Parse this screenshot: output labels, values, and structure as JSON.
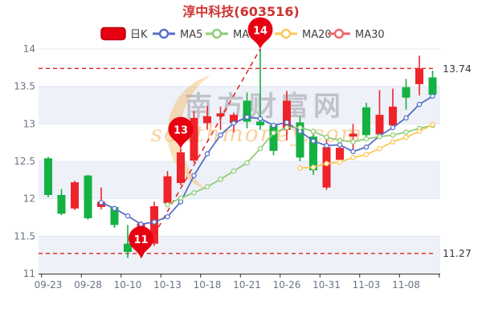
{
  "title": "淳中科技(603516)",
  "legend": [
    {
      "label": "日K",
      "type": "rect",
      "color": "#e60012"
    },
    {
      "label": "MA5",
      "type": "line",
      "color": "#5470c6"
    },
    {
      "label": "MA10",
      "type": "line",
      "color": "#91cc75"
    },
    {
      "label": "MA20",
      "type": "line",
      "color": "#fac858"
    },
    {
      "label": "MA30",
      "type": "line",
      "color": "#ee6666"
    }
  ],
  "watermark": {
    "cn": "南方财富网",
    "en": "southmoney.com"
  },
  "chart_data": {
    "type": "candlestick",
    "title": "淳中科技(603516)",
    "ylim": [
      11,
      14
    ],
    "y_ticks": [
      11,
      11.5,
      12,
      12.5,
      13,
      13.5,
      14
    ],
    "grid": "horizontal-with-alternating-bands",
    "legend_position": "top",
    "up_color": "#ef232a",
    "down_color": "#14b143",
    "dates": [
      "09-23",
      "09-26",
      "09-27",
      "09-28",
      "09-29",
      "09-30",
      "10-10",
      "10-11",
      "10-12",
      "10-13",
      "10-14",
      "10-17",
      "10-18",
      "10-19",
      "10-20",
      "10-21",
      "10-24",
      "10-25",
      "10-26",
      "10-27",
      "10-28",
      "10-31",
      "11-01",
      "11-02",
      "11-03",
      "11-04",
      "11-07",
      "11-08",
      "11-09",
      "11-10"
    ],
    "x_tick_labels": [
      "09-23",
      "09-28",
      "10-10",
      "10-13",
      "10-18",
      "10-21",
      "10-26",
      "10-31",
      "11-03",
      "11-08"
    ],
    "ohlc_note": "arrays are [open, close, low, high]",
    "ohlc": [
      [
        12.54,
        12.05,
        12.02,
        12.56
      ],
      [
        12.05,
        11.8,
        11.78,
        12.13
      ],
      [
        11.87,
        12.22,
        11.85,
        12.24
      ],
      [
        12.31,
        11.74,
        11.72,
        12.32
      ],
      [
        11.89,
        11.96,
        11.86,
        12.15
      ],
      [
        11.89,
        11.65,
        11.61,
        11.9
      ],
      [
        11.4,
        11.29,
        11.21,
        11.65
      ],
      [
        11.3,
        11.67,
        11.21,
        11.7
      ],
      [
        11.4,
        11.9,
        11.37,
        11.96
      ],
      [
        11.94,
        12.3,
        11.9,
        12.37
      ],
      [
        12.21,
        12.62,
        12.18,
        12.67
      ],
      [
        12.51,
        13.08,
        12.48,
        13.17
      ],
      [
        13.01,
        13.1,
        12.92,
        13.24
      ],
      [
        13.1,
        13.14,
        12.92,
        13.23
      ],
      [
        13.01,
        13.12,
        12.89,
        13.15
      ],
      [
        13.31,
        13.03,
        12.94,
        13.42
      ],
      [
        13.03,
        12.98,
        12.92,
        14.0
      ],
      [
        12.98,
        12.64,
        12.58,
        13.0
      ],
      [
        12.92,
        13.31,
        12.78,
        13.44
      ],
      [
        13.02,
        12.55,
        12.5,
        13.1
      ],
      [
        12.83,
        12.38,
        12.32,
        12.86
      ],
      [
        12.15,
        12.69,
        12.12,
        12.83
      ],
      [
        12.52,
        12.68,
        12.47,
        12.78
      ],
      [
        12.83,
        12.87,
        12.62,
        13.0
      ],
      [
        13.22,
        12.85,
        12.82,
        13.28
      ],
      [
        12.86,
        13.12,
        12.82,
        13.45
      ],
      [
        12.98,
        13.23,
        12.95,
        13.47
      ],
      [
        13.49,
        13.35,
        13.19,
        13.6
      ],
      [
        13.53,
        13.74,
        13.38,
        13.91
      ],
      [
        13.62,
        13.39,
        13.35,
        13.71
      ]
    ],
    "series": [
      {
        "name": "MA5",
        "color": "#5470c6",
        "start": 4,
        "values": [
          11.95,
          11.87,
          11.77,
          11.66,
          11.69,
          11.76,
          11.96,
          12.31,
          12.6,
          12.85,
          13.01,
          13.09,
          13.07,
          12.98,
          13.02,
          12.9,
          12.77,
          12.71,
          12.72,
          12.63,
          12.69,
          12.84,
          12.95,
          13.08,
          13.26,
          13.37
        ]
      },
      {
        "name": "MA10",
        "color": "#91cc75",
        "start": 9,
        "values": [
          11.92,
          12.01,
          12.08,
          12.16,
          12.26,
          12.37,
          12.48,
          12.67,
          12.88,
          12.95,
          12.95,
          12.9,
          12.82,
          12.78,
          12.76,
          12.8,
          12.83,
          12.85,
          12.89,
          12.94,
          12.98
        ]
      },
      {
        "name": "MA20",
        "color": "#fac858",
        "start": 19,
        "values": [
          12.41,
          12.42,
          12.47,
          12.49,
          12.55,
          12.59,
          12.67,
          12.76,
          12.82,
          12.9,
          12.99
        ]
      },
      {
        "name": "MA30",
        "color": "#ee6666",
        "start": 29,
        "values": []
      }
    ],
    "markers": [
      {
        "label": "14",
        "index": 16,
        "value": 14.0
      },
      {
        "label": "13",
        "index": 10,
        "value": 12.67
      },
      {
        "label": "11",
        "index": 7,
        "value": 11.21
      }
    ],
    "marker_color": "#e60012",
    "ref_lines": [
      {
        "value": 13.74,
        "label": "13.74"
      },
      {
        "value": 11.27,
        "label": "11.27"
      }
    ],
    "ref_line_color": "#e02222",
    "trendline": {
      "from_index": 7,
      "from_value": 11.21,
      "to_index": 16,
      "to_value": 14.0,
      "style": "dashed"
    }
  },
  "colors": {
    "title": "#cf3333",
    "band": "#eef1f8",
    "grid_line": "#e3e8f3",
    "axis_line": "#333333"
  }
}
